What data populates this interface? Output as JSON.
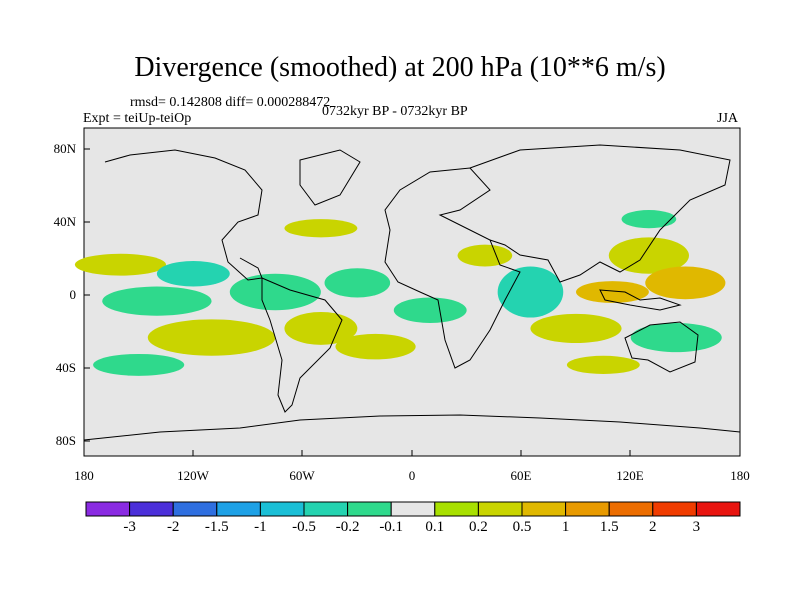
{
  "title": "Divergence (smoothed) at 200 hPa (10**6 m/s)",
  "stats": "rmsd= 0.142808 diff= 0.000288472",
  "experiment": "Expt = teiUp-teiOp",
  "period": "0732kyr BP - 0732kyr BP",
  "season": "JJA",
  "y_ticks": [
    "80N",
    "40N",
    "0",
    "40S",
    "80S"
  ],
  "x_ticks": [
    "180",
    "120W",
    "60W",
    "0",
    "60E",
    "120E",
    "180"
  ],
  "colorbar": {
    "labels": [
      "-3",
      "-2",
      "-1.5",
      "-1",
      "-0.5",
      "-0.2",
      "-0.1",
      "0.1",
      "0.2",
      "0.5",
      "1",
      "1.5",
      "2",
      "3"
    ],
    "colors": [
      "#8a2be2",
      "#4b2fd9",
      "#2f6fe0",
      "#1ea1e6",
      "#1bbfd6",
      "#24d3b0",
      "#2fd98c",
      "#e6e6e6",
      "#a8e000",
      "#c9d400",
      "#e0b800",
      "#e89a00",
      "#ec6d00",
      "#f03c00",
      "#e8140f"
    ]
  },
  "chart_data": {
    "type": "heatmap",
    "title": "Divergence (smoothed) at 200 hPa (10**6 m/s)",
    "variable": "200 hPa divergence difference",
    "units": "10**6 m/s",
    "x_range": [
      -180,
      180
    ],
    "y_range": [
      -90,
      90
    ],
    "contour_levels": [
      -3,
      -2,
      -1.5,
      -1,
      -0.5,
      -0.2,
      -0.1,
      0.1,
      0.2,
      0.5,
      1,
      1.5,
      2,
      3
    ],
    "regions": [
      {
        "lon": -160,
        "lat": 15,
        "rx": 25,
        "ry": 6,
        "level": 0.2
      },
      {
        "lon": -140,
        "lat": -5,
        "rx": 30,
        "ry": 8,
        "level": -0.2
      },
      {
        "lon": -120,
        "lat": 10,
        "rx": 20,
        "ry": 7,
        "level": -0.5
      },
      {
        "lon": -110,
        "lat": -25,
        "rx": 35,
        "ry": 10,
        "level": 0.2
      },
      {
        "lon": -150,
        "lat": -40,
        "rx": 25,
        "ry": 6,
        "level": -0.2
      },
      {
        "lon": -75,
        "lat": 0,
        "rx": 25,
        "ry": 10,
        "level": -0.2
      },
      {
        "lon": -50,
        "lat": 35,
        "rx": 20,
        "ry": 5,
        "level": 0.2
      },
      {
        "lon": -50,
        "lat": -20,
        "rx": 20,
        "ry": 9,
        "level": 0.2
      },
      {
        "lon": -30,
        "lat": 5,
        "rx": 18,
        "ry": 8,
        "level": -0.2
      },
      {
        "lon": -20,
        "lat": -30,
        "rx": 22,
        "ry": 7,
        "level": 0.2
      },
      {
        "lon": 10,
        "lat": -10,
        "rx": 20,
        "ry": 7,
        "level": -0.2
      },
      {
        "lon": 40,
        "lat": 20,
        "rx": 15,
        "ry": 6,
        "level": 0.2
      },
      {
        "lon": 65,
        "lat": 0,
        "rx": 18,
        "ry": 14,
        "level": -0.5
      },
      {
        "lon": 90,
        "lat": -20,
        "rx": 25,
        "ry": 8,
        "level": 0.2
      },
      {
        "lon": 110,
        "lat": 0,
        "rx": 20,
        "ry": 6,
        "level": 0.5
      },
      {
        "lon": 130,
        "lat": 20,
        "rx": 22,
        "ry": 10,
        "level": 0.2
      },
      {
        "lon": 150,
        "lat": 5,
        "rx": 22,
        "ry": 9,
        "level": 0.5
      },
      {
        "lon": 145,
        "lat": -25,
        "rx": 25,
        "ry": 8,
        "level": -0.2
      },
      {
        "lon": 105,
        "lat": -40,
        "rx": 20,
        "ry": 5,
        "level": 0.2
      },
      {
        "lon": 130,
        "lat": 40,
        "rx": 15,
        "ry": 5,
        "level": -0.2
      }
    ]
  }
}
